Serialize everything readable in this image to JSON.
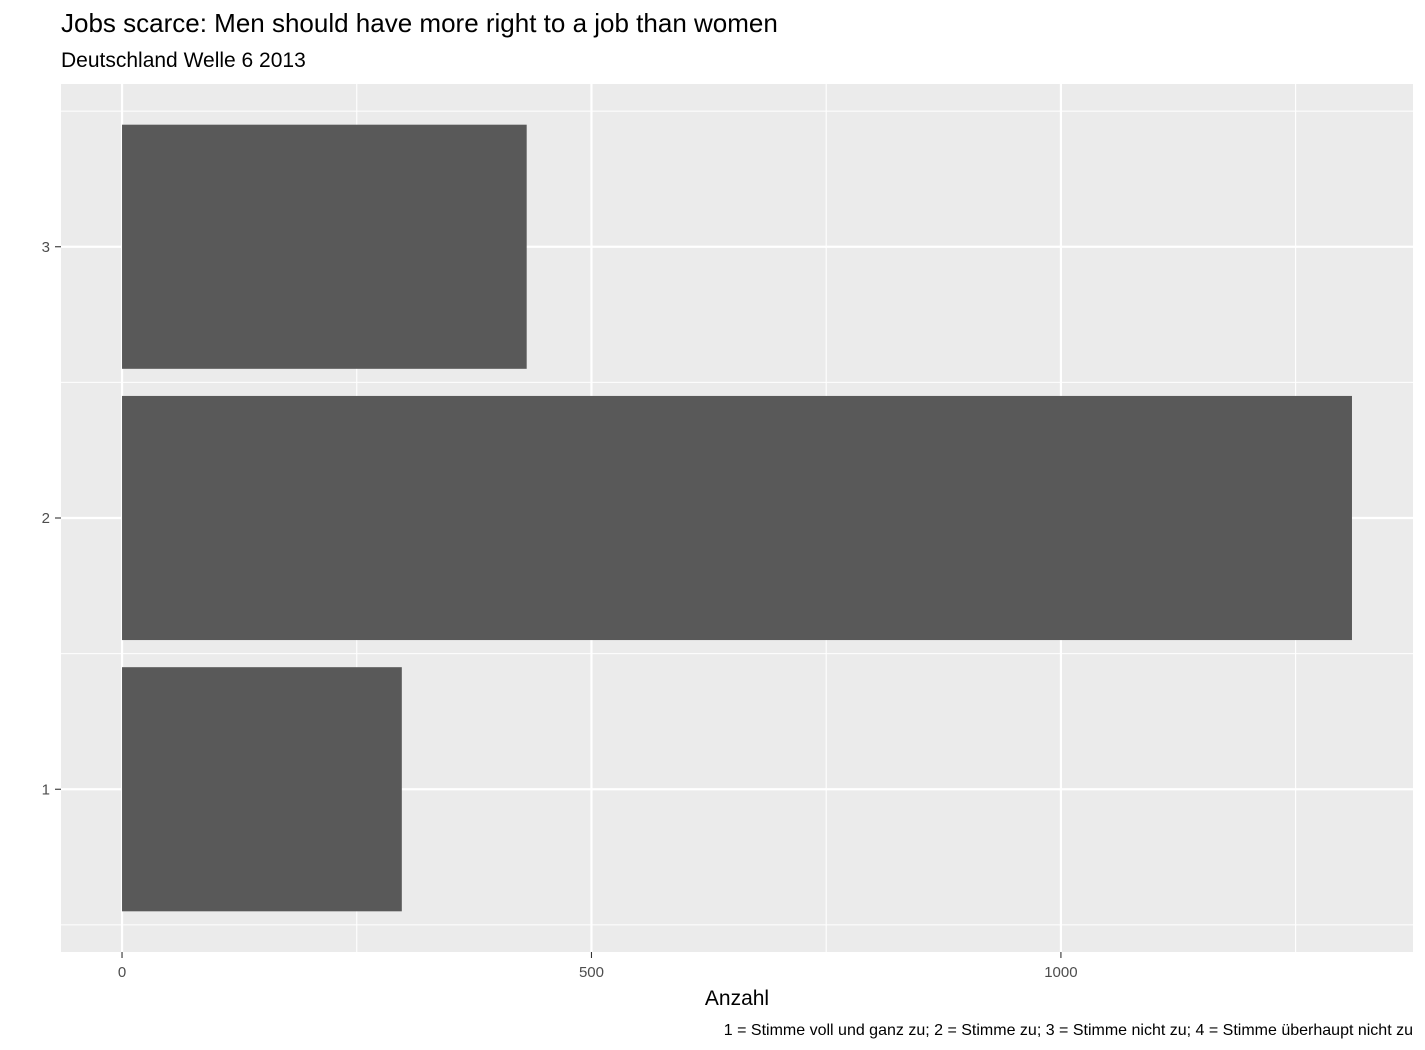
{
  "chart_data": {
    "type": "bar",
    "orientation": "horizontal",
    "title": "Jobs scarce: Men should have more right to a job than women",
    "subtitle": "Deutschland Welle 6 2013",
    "xlabel": "Anzahl",
    "ylabel": "",
    "caption": "1 = Stimme voll und ganz zu; 2 = Stimme zu; 3 = Stimme nicht zu; 4 = Stimme überhaupt nicht zu",
    "categories": [
      "1",
      "2",
      "3"
    ],
    "values": [
      298,
      1310,
      431
    ],
    "xlim": [
      -65,
      1375
    ],
    "x_ticks": [
      0,
      500,
      1000
    ],
    "x_tick_labels": [
      "0",
      "500",
      "1000"
    ],
    "grid": true,
    "legend": "none",
    "colors": {
      "bar": "#595959",
      "panel_background": "#ebebeb",
      "grid_major": "#ffffff",
      "tick_label": "#4d4d4d"
    }
  }
}
